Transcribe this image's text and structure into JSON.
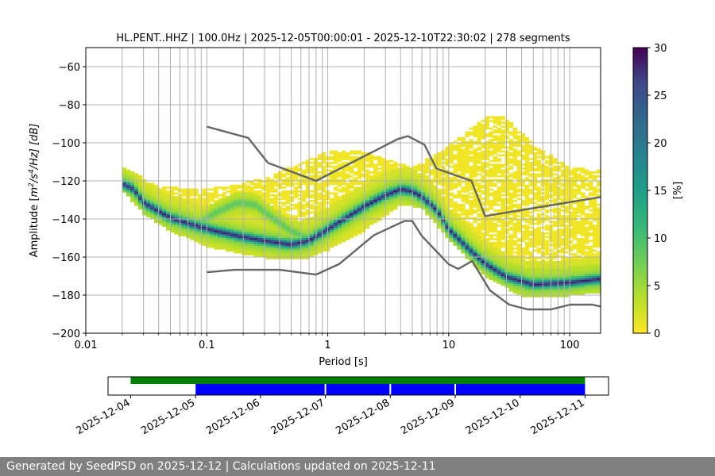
{
  "chart_data": [
    {
      "type": "heatmap",
      "title": "HL.PENT..HHZ | 100.0Hz | 2025-12-05T00:00:01 - 2025-12-10T22:30:02 | 278 segments",
      "xlabel": "Period [s]",
      "ylabel_parts": [
        "Amplitude [",
        "m",
        "2",
        "/",
        "s",
        "4",
        "/Hz] [dB]"
      ],
      "x_scale": "log",
      "xlim": [
        0.01,
        180
      ],
      "ylim": [
        -200,
        -50
      ],
      "x_ticks": [
        {
          "v": 0.01,
          "label": "0.01"
        },
        {
          "v": 0.1,
          "label": "0.1"
        },
        {
          "v": 1,
          "label": "1"
        },
        {
          "v": 10,
          "label": "10"
        },
        {
          "v": 100,
          "label": "100"
        }
      ],
      "y_ticks": [
        -60,
        -80,
        -100,
        -120,
        -140,
        -160,
        -180,
        -200
      ],
      "grid": true,
      "nhnm": [
        [
          0.1,
          -168.0
        ],
        [
          0.17,
          -166.7
        ],
        [
          0.4,
          -166.7
        ],
        [
          0.8,
          -169.2
        ],
        [
          1.24,
          -163.7
        ],
        [
          2.4,
          -148.6
        ],
        [
          4.3,
          -141.1
        ],
        [
          5.0,
          -141.1
        ],
        [
          6.0,
          -149.0
        ],
        [
          10.0,
          -163.8
        ],
        [
          12.0,
          -166.2
        ],
        [
          15.6,
          -162.1
        ],
        [
          21.9,
          -177.5
        ],
        [
          31.6,
          -185.0
        ],
        [
          45.0,
          -187.5
        ],
        [
          70.0,
          -187.5
        ],
        [
          101.0,
          -185.0
        ],
        [
          154.0,
          -185.0
        ],
        [
          180,
          -186.0
        ]
      ],
      "nlnm": [
        [
          0.1,
          -91.5
        ],
        [
          0.22,
          -97.4
        ],
        [
          0.32,
          -110.5
        ],
        [
          0.8,
          -120.0
        ],
        [
          3.8,
          -98.0
        ],
        [
          4.6,
          -96.5
        ],
        [
          6.3,
          -101.0
        ],
        [
          7.9,
          -113.5
        ],
        [
          15.4,
          -120.0
        ],
        [
          20.0,
          -138.5
        ],
        [
          180,
          -128.5
        ]
      ],
      "mode_curve": [
        [
          0.02,
          -121
        ],
        [
          0.025,
          -124
        ],
        [
          0.03,
          -131
        ],
        [
          0.05,
          -139
        ],
        [
          0.08,
          -143
        ],
        [
          0.12,
          -146
        ],
        [
          0.2,
          -149
        ],
        [
          0.3,
          -151
        ],
        [
          0.5,
          -153
        ],
        [
          0.7,
          -151
        ],
        [
          1.0,
          -145
        ],
        [
          1.5,
          -138
        ],
        [
          2.0,
          -133
        ],
        [
          3.0,
          -127
        ],
        [
          4.0,
          -124
        ],
        [
          5.0,
          -125
        ],
        [
          6.0,
          -128
        ],
        [
          8.0,
          -135
        ],
        [
          10.0,
          -145
        ],
        [
          15.0,
          -156
        ],
        [
          20.0,
          -163
        ],
        [
          30.0,
          -170
        ],
        [
          50.0,
          -174
        ],
        [
          100.0,
          -173
        ],
        [
          180,
          -171
        ]
      ],
      "secondary_curve": [
        [
          0.08,
          -143
        ],
        [
          0.12,
          -136
        ],
        [
          0.18,
          -131
        ],
        [
          0.25,
          -132
        ],
        [
          0.35,
          -139
        ],
        [
          0.5,
          -146
        ],
        [
          0.7,
          -150
        ],
        [
          1.0,
          -145
        ]
      ],
      "upper_envelope": [
        [
          0.02,
          -112
        ],
        [
          0.04,
          -122
        ],
        [
          0.08,
          -124
        ],
        [
          0.15,
          -122
        ],
        [
          0.3,
          -118
        ],
        [
          0.6,
          -110
        ],
        [
          1.0,
          -104
        ],
        [
          1.5,
          -103
        ],
        [
          2.0,
          -104
        ],
        [
          3.0,
          -108
        ],
        [
          5.0,
          -112
        ],
        [
          8.0,
          -105
        ],
        [
          12.0,
          -97
        ],
        [
          20.0,
          -86
        ],
        [
          30.0,
          -86
        ],
        [
          50.0,
          -100
        ],
        [
          100.0,
          -112
        ],
        [
          180,
          -114
        ]
      ],
      "lower_envelope": [
        [
          0.02,
          -124
        ],
        [
          0.03,
          -137
        ],
        [
          0.05,
          -146
        ],
        [
          0.1,
          -154
        ],
        [
          0.2,
          -158
        ],
        [
          0.4,
          -161
        ],
        [
          0.7,
          -160
        ],
        [
          1.0,
          -156
        ],
        [
          2.0,
          -146
        ],
        [
          4.0,
          -132
        ],
        [
          6.0,
          -134
        ],
        [
          10.0,
          -150
        ],
        [
          20.0,
          -170
        ],
        [
          40.0,
          -180
        ],
        [
          100.0,
          -180
        ],
        [
          180,
          -178
        ]
      ],
      "colorbar": {
        "label": "[%]",
        "min": 0,
        "max": 30,
        "ticks": [
          0,
          5,
          10,
          15,
          20,
          25,
          30
        ]
      }
    },
    {
      "type": "availability",
      "x_ticks": [
        "2025-12-04",
        "2025-12-05",
        "2025-12-06",
        "2025-12-07",
        "2025-12-08",
        "2025-12-09",
        "2025-12-10",
        "2025-12-11"
      ],
      "green_span": [
        "2025-12-04",
        "2025-12-11"
      ],
      "blue_span": [
        "2025-12-05",
        "2025-12-11"
      ],
      "gaps": [
        "2025-12-07",
        "2025-12-08",
        "2025-12-09"
      ],
      "colors": {
        "data": "#0000ff",
        "availability": "#008000"
      }
    }
  ],
  "footer": {
    "text": "Generated by SeedPSD on 2025-12-12 | Calculations updated on 2025-12-11"
  },
  "colors": {
    "model_lines": "#666666",
    "grid": "#b0b0b0",
    "footer_bg": "#808080"
  }
}
